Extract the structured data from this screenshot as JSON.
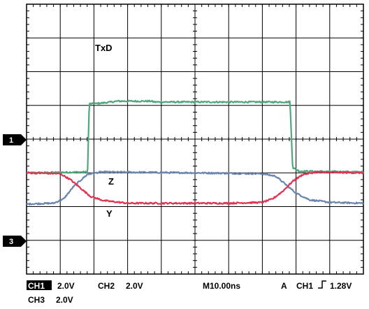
{
  "chart_data": {
    "type": "line",
    "title": "",
    "xlabel": "",
    "ylabel": "",
    "grid": true,
    "time_per_division_ns": 10,
    "x_unit": "ns",
    "xlim": [
      0,
      100
    ],
    "series": [
      {
        "name": "TxD",
        "color": "#4fa77c",
        "channel_marker": "1",
        "points": [
          [
            0,
            0
          ],
          [
            18,
            0.05
          ],
          [
            18.1,
            0
          ],
          [
            18.6,
            4.1
          ],
          [
            20,
            4.1
          ],
          [
            23,
            4.15
          ],
          [
            27,
            4.25
          ],
          [
            37,
            4.25
          ],
          [
            38,
            4.2
          ],
          [
            78,
            4.2
          ],
          [
            78.2,
            4.25
          ],
          [
            79,
            0.3
          ],
          [
            81,
            0.1
          ],
          [
            100,
            0.05
          ]
        ]
      },
      {
        "name": "Z",
        "color": "#6c86b0",
        "channel_marker": "3",
        "points": [
          [
            0,
            0.15
          ],
          [
            8,
            0.2
          ],
          [
            11,
            0.45
          ],
          [
            14,
            1.2
          ],
          [
            18,
            1.9
          ],
          [
            22,
            2.05
          ],
          [
            50,
            2.0
          ],
          [
            70,
            1.95
          ],
          [
            74,
            1.8
          ],
          [
            77,
            1.3
          ],
          [
            80,
            0.8
          ],
          [
            84,
            0.4
          ],
          [
            90,
            0.25
          ],
          [
            100,
            0.2
          ]
        ]
      },
      {
        "name": "Y",
        "color": "#e03454",
        "channel_marker": "3",
        "points": [
          [
            0,
            2.0
          ],
          [
            10,
            1.95
          ],
          [
            13,
            1.6
          ],
          [
            16,
            1.1
          ],
          [
            19,
            0.6
          ],
          [
            23,
            0.35
          ],
          [
            30,
            0.2
          ],
          [
            60,
            0.2
          ],
          [
            70,
            0.25
          ],
          [
            73,
            0.45
          ],
          [
            76,
            0.9
          ],
          [
            79,
            1.5
          ],
          [
            82,
            1.9
          ],
          [
            86,
            2.05
          ],
          [
            100,
            2.0
          ]
        ]
      }
    ],
    "annotations": [
      "TxD",
      "Z",
      "Y"
    ],
    "channel_markers": [
      "1",
      "3"
    ]
  },
  "status": {
    "ch1_label": "CH1",
    "ch1_scale": "2.0V",
    "ch2_label": "CH2",
    "ch2_scale": "2.0V",
    "timebase": "M10.00ns",
    "trigger_mode": "A",
    "trigger_source": "CH1",
    "trigger_level": "1.28V",
    "ch3_label": "CH3",
    "ch3_scale": "2.0V"
  },
  "colors": {
    "grid": "#000000",
    "txd": "#4fa77c",
    "z": "#6c86b0",
    "y": "#e03454"
  }
}
